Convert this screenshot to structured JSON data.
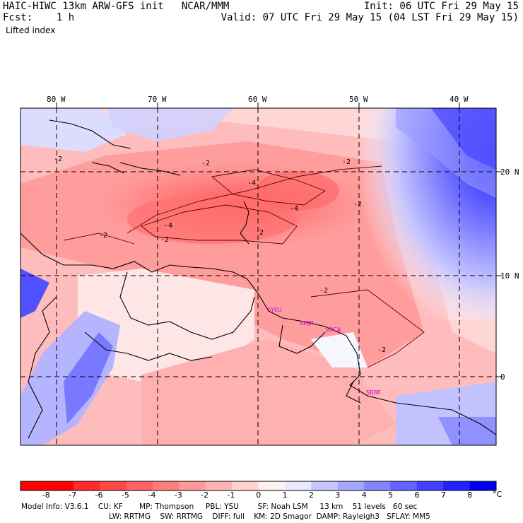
{
  "header": {
    "title": "HAIC-HIWC 13km ARW-GFS init   NCAR/MMM",
    "init": "Init: 06 UTC Fri 29 May 15",
    "fcst": "Fcst:    1 h",
    "valid": "Valid: 07 UTC Fri 29 May 15 (04 LST Fri 29 May 15)",
    "field": "Lifted index"
  },
  "map": {
    "lon_labels": [
      "80 W",
      "70 W",
      "60 W",
      "50 W",
      "40 W"
    ],
    "lat_labels": [
      "20 N",
      "10 N",
      "0"
    ],
    "contour_labels": [
      "-2",
      "-2",
      "-2",
      "-2",
      "-4",
      "-4",
      "-4",
      "-2",
      "-2",
      "-2",
      "2",
      "-2"
    ],
    "stations": [
      "SYEU",
      "SMJP",
      "SOCA",
      "SBBE"
    ],
    "station_color": "#cc00cc"
  },
  "colorbar": {
    "labels": [
      "-8",
      "-7",
      "-6",
      "-5",
      "-4",
      "-3",
      "-2",
      "-1",
      "0",
      "1",
      "2",
      "3",
      "4",
      "5",
      "6",
      "7",
      "8"
    ],
    "unit": "°C",
    "colors": [
      "#ff0000",
      "#ff2a2a",
      "#ff4848",
      "#ff6262",
      "#ff7d7d",
      "#ff9999",
      "#ffb4b4",
      "#ffd2d2",
      "#fff0f0",
      "#e8e8ff",
      "#c8c8ff",
      "#a6a6ff",
      "#8484ff",
      "#6262ff",
      "#4040ff",
      "#2222ff",
      "#0000ee"
    ]
  },
  "footer": {
    "line1": "Model Info: V3.6.1    CU: KF       MP: Thompson     PBL: YSU        SF: Noah LSM     13 km    51 levels   60 sec",
    "line2": "LW: RRTMG    SW: RRTMG    DIFF: full    KM: 2D Smagor  DAMP: Rayleigh3   SFLAY: MM5"
  }
}
